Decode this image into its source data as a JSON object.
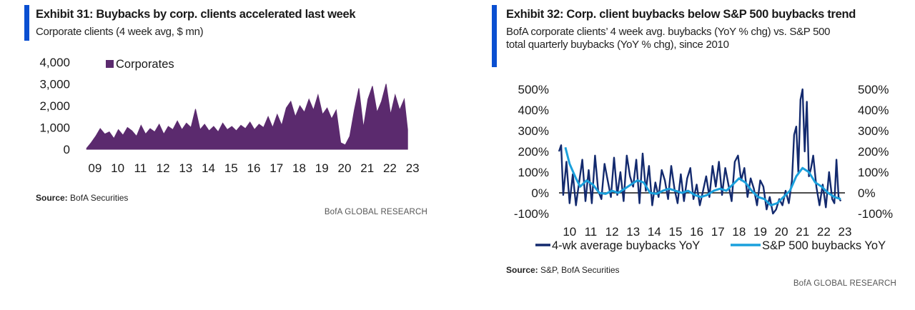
{
  "exhibit31": {
    "title": "Exhibit 31: Buybacks by corp. clients accelerated last week",
    "subtitle": "Corporate clients (4 week avg, $ mn)",
    "source_label": "Source:",
    "source_text": "BofA Securities",
    "brand": "BofA GLOBAL RESEARCH"
  },
  "exhibit32": {
    "title": "Exhibit 32: Corp. client buybacks below S&P 500 buybacks trend",
    "subtitle_line1": "BofA corporate clients’ 4 week avg. buybacks (YoY % chg) vs. S&P 500",
    "subtitle_line2": "total quarterly buybacks (YoY % chg), since 2010",
    "source_label": "Source:",
    "source_text": "S&P, BofA Securities",
    "brand": "BofA GLOBAL RESEARCH"
  },
  "colors": {
    "accent": "#0a4fd1",
    "corporates": "#5b2a6e",
    "wk_avg": "#132a6e",
    "sp500": "#1aa0dc",
    "zero_line": "#111111"
  },
  "chart_data": [
    {
      "type": "area",
      "title": "Exhibit 31: Buybacks by corp. clients accelerated last week",
      "subtitle": "Corporate clients (4 week avg, $ mn)",
      "x_ticks": [
        "09",
        "10",
        "11",
        "12",
        "13",
        "14",
        "15",
        "16",
        "17",
        "18",
        "19",
        "20",
        "21",
        "22",
        "23"
      ],
      "y_ticks": [
        "4,000",
        "3,000",
        "2,000",
        "1,000",
        "0"
      ],
      "y_tick_values": [
        4000,
        3000,
        2000,
        1000,
        0
      ],
      "ylim": [
        0,
        4000
      ],
      "xlim": [
        2009.0,
        2023.4
      ],
      "legend_position": "top-left",
      "series": [
        {
          "name": "Corporates",
          "x": [
            2009.1,
            2009.3,
            2009.5,
            2009.7,
            2009.9,
            2010.1,
            2010.3,
            2010.5,
            2010.7,
            2010.9,
            2011.1,
            2011.3,
            2011.5,
            2011.7,
            2011.9,
            2012.1,
            2012.3,
            2012.5,
            2012.7,
            2012.9,
            2013.1,
            2013.3,
            2013.5,
            2013.7,
            2013.9,
            2014.1,
            2014.3,
            2014.5,
            2014.7,
            2014.9,
            2015.1,
            2015.3,
            2015.5,
            2015.7,
            2015.9,
            2016.1,
            2016.3,
            2016.5,
            2016.7,
            2016.9,
            2017.1,
            2017.3,
            2017.5,
            2017.7,
            2017.9,
            2018.1,
            2018.3,
            2018.5,
            2018.7,
            2018.9,
            2019.1,
            2019.3,
            2019.5,
            2019.7,
            2019.9,
            2020.1,
            2020.3,
            2020.5,
            2020.7,
            2020.9,
            2021.1,
            2021.3,
            2021.5,
            2021.7,
            2021.9,
            2022.1,
            2022.3,
            2022.5,
            2022.7,
            2022.9,
            2023.1,
            2023.25
          ],
          "values": [
            50,
            300,
            600,
            950,
            700,
            800,
            500,
            900,
            650,
            1000,
            850,
            600,
            1100,
            700,
            950,
            800,
            1150,
            700,
            1050,
            900,
            1300,
            900,
            1200,
            1000,
            1850,
            900,
            1150,
            850,
            1050,
            800,
            1200,
            900,
            1050,
            850,
            1100,
            950,
            1250,
            900,
            1150,
            1000,
            1500,
            1000,
            1600,
            1100,
            1900,
            2200,
            1500,
            2000,
            1700,
            2300,
            1800,
            2500,
            1600,
            1900,
            1400,
            1800,
            300,
            200,
            600,
            1800,
            2800,
            1000,
            2300,
            2900,
            1700,
            2200,
            3000,
            1600,
            2500,
            1800,
            2300,
            900
          ]
        }
      ]
    },
    {
      "type": "line",
      "title": "Exhibit 32: Corp. client buybacks below S&P 500 buybacks trend",
      "subtitle": "BofA corporate clients’ 4 week avg. buybacks (YoY % chg) vs. S&P 500 total quarterly buybacks (YoY % chg), since 2010",
      "x_ticks": [
        "10",
        "11",
        "12",
        "13",
        "14",
        "15",
        "16",
        "17",
        "18",
        "19",
        "20",
        "21",
        "22",
        "23"
      ],
      "y_ticks": [
        "500%",
        "400%",
        "300%",
        "200%",
        "100%",
        "0%",
        "-100%"
      ],
      "y_tick_values": [
        500,
        400,
        300,
        200,
        100,
        0,
        -100
      ],
      "y_right_ticks": [
        "500%",
        "400%",
        "300%",
        "200%",
        "100%",
        "0%",
        "-100%"
      ],
      "ylim": [
        -100,
        500
      ],
      "xlim": [
        2010.0,
        2023.5
      ],
      "legend_position": "bottom",
      "series": [
        {
          "name": "4-wk average buybacks YoY",
          "x": [
            2010.0,
            2010.1,
            2010.2,
            2010.35,
            2010.5,
            2010.65,
            2010.8,
            2010.95,
            2011.1,
            2011.25,
            2011.4,
            2011.55,
            2011.7,
            2011.85,
            2012.0,
            2012.15,
            2012.3,
            2012.45,
            2012.6,
            2012.75,
            2012.9,
            2013.05,
            2013.2,
            2013.35,
            2013.5,
            2013.65,
            2013.8,
            2013.95,
            2014.1,
            2014.25,
            2014.4,
            2014.55,
            2014.7,
            2014.85,
            2015.0,
            2015.15,
            2015.3,
            2015.45,
            2015.6,
            2015.75,
            2015.9,
            2016.05,
            2016.2,
            2016.35,
            2016.5,
            2016.65,
            2016.8,
            2016.95,
            2017.1,
            2017.25,
            2017.4,
            2017.55,
            2017.7,
            2017.85,
            2018.0,
            2018.15,
            2018.3,
            2018.45,
            2018.6,
            2018.75,
            2018.9,
            2019.05,
            2019.2,
            2019.35,
            2019.5,
            2019.65,
            2019.8,
            2019.95,
            2020.1,
            2020.25,
            2020.4,
            2020.55,
            2020.7,
            2020.85,
            2021.0,
            2021.1,
            2021.2,
            2021.3,
            2021.4,
            2021.5,
            2021.6,
            2021.7,
            2021.8,
            2021.9,
            2022.0,
            2022.15,
            2022.3,
            2022.45,
            2022.6,
            2022.75,
            2022.9,
            2023.0,
            2023.1,
            2023.2,
            2023.3
          ],
          "values": [
            200,
            230,
            -10,
            150,
            -50,
            90,
            -60,
            50,
            160,
            -40,
            110,
            -50,
            180,
            10,
            -30,
            140,
            60,
            -20,
            170,
            -10,
            100,
            -40,
            180,
            80,
            30,
            160,
            -50,
            190,
            10,
            130,
            -60,
            50,
            -20,
            110,
            60,
            -30,
            130,
            20,
            -50,
            90,
            -40,
            70,
            120,
            -30,
            40,
            -60,
            10,
            80,
            -20,
            130,
            30,
            150,
            -10,
            120,
            40,
            -40,
            150,
            180,
            60,
            120,
            -20,
            70,
            20,
            -60,
            60,
            30,
            -80,
            -20,
            -100,
            -80,
            -30,
            -60,
            10,
            -50,
            60,
            280,
            320,
            100,
            450,
            510,
            200,
            440,
            80,
            120,
            180,
            30,
            -60,
            40,
            -70,
            100,
            -30,
            -50,
            160,
            -20,
            -40
          ]
        },
        {
          "name": "S&P 500 buybacks YoY",
          "x": [
            2010.3,
            2010.5,
            2010.8,
            2011.0,
            2011.3,
            2011.6,
            2011.9,
            2012.2,
            2012.5,
            2012.8,
            2013.1,
            2013.4,
            2013.7,
            2014.0,
            2014.3,
            2014.6,
            2014.9,
            2015.2,
            2015.5,
            2015.8,
            2016.1,
            2016.4,
            2016.7,
            2017.0,
            2017.3,
            2017.6,
            2017.9,
            2018.2,
            2018.5,
            2018.8,
            2019.1,
            2019.4,
            2019.7,
            2020.0,
            2020.3,
            2020.6,
            2020.9,
            2021.2,
            2021.5,
            2021.8,
            2022.1,
            2022.4,
            2022.7,
            2023.0,
            2023.3
          ],
          "values": [
            220,
            140,
            70,
            30,
            60,
            40,
            0,
            -5,
            10,
            0,
            20,
            40,
            60,
            50,
            0,
            -5,
            10,
            20,
            10,
            0,
            10,
            -10,
            -20,
            -10,
            10,
            20,
            10,
            40,
            70,
            50,
            10,
            -20,
            -30,
            -60,
            -50,
            -20,
            10,
            80,
            120,
            100,
            50,
            30,
            0,
            -20,
            -30
          ]
        }
      ]
    }
  ]
}
